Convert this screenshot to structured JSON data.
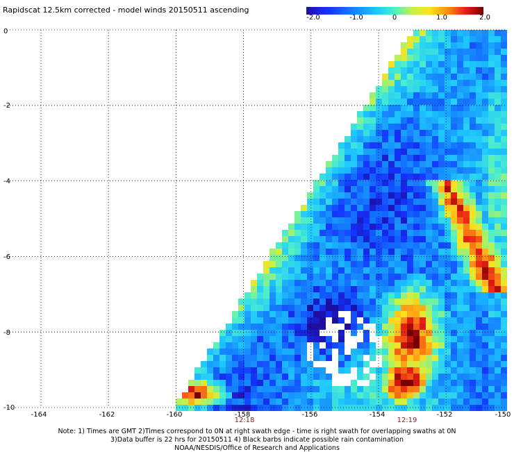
{
  "title": "Rapidscat 12.5km corrected - model winds 20150511 ascending",
  "colorbar": {
    "labels": [
      "-2.0",
      "-1.0",
      "0",
      "1.0",
      "2.0"
    ],
    "values": [
      -2.0,
      -1.0,
      0,
      1.0,
      2.0
    ]
  },
  "map": {
    "lon_labels": [
      "-164",
      "-162",
      "-160",
      "-158",
      "-156",
      "-154",
      "-152",
      "-150"
    ],
    "lon_values": [
      -164,
      -162,
      -160,
      -158,
      -156,
      -154,
      -152,
      -150
    ],
    "lat_labels": [
      "0",
      "-2",
      "-4",
      "-6",
      "-8",
      "-10"
    ],
    "lat_values": [
      0,
      -2,
      -4,
      -6,
      -8,
      -10
    ],
    "time_labels": [
      {
        "text": "12:18",
        "lon": -157.85
      },
      {
        "text": "12:19",
        "lon": -152.8
      }
    ]
  },
  "notes": {
    "line1": "Note: 1) Times are GMT 2)Times correspond to 0N at right swath edge - time is right swath for overlapping swaths at 0N",
    "line2": "3)Data buffer is 22 hrs for 20150511 4) Black barbs indicate possible rain contamination",
    "line3": "NOAA/NESDIS/Office of Research and Applications"
  }
}
